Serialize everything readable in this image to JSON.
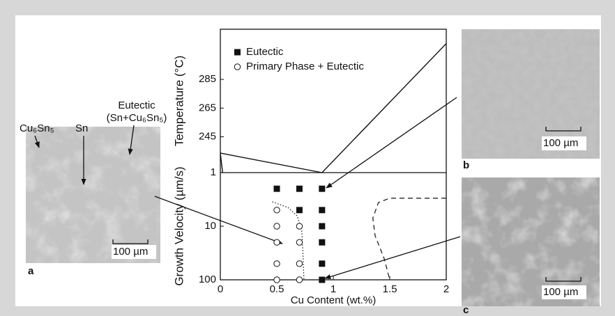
{
  "chart_data": [
    {
      "type": "line",
      "ylabel": "Temperature (°C)",
      "xlim": [
        0,
        2
      ],
      "ylim": [
        220,
        320
      ],
      "yticks": [
        245,
        265,
        285
      ],
      "series": [
        {
          "color": "#111111",
          "x": [
            0,
            0.9,
            2
          ],
          "values": [
            233.6,
            220,
            310
          ]
        },
        {
          "color": "#111111",
          "x": [
            0,
            0.02
          ],
          "values": [
            233.6,
            220
          ]
        }
      ]
    },
    {
      "type": "scatter",
      "xlabel": "Cu Content (wt.%)",
      "ylabel": "Growth Velocity (µm/s)",
      "xlim": [
        0,
        2
      ],
      "xticks": [
        0,
        0.5,
        1,
        1.5,
        2
      ],
      "ylim": [
        1,
        100
      ],
      "yticks": [
        1,
        10,
        100
      ],
      "ylog": true,
      "yinverted": true,
      "series": [
        {
          "name": "Eutectic",
          "marker": "square",
          "color": "#111111",
          "x": [
            0.5,
            0.7,
            0.9,
            0.7,
            0.9,
            0.9,
            0.9,
            0.9,
            0.9
          ],
          "values": [
            2,
            2,
            2,
            5,
            5,
            10,
            20,
            50,
            100
          ]
        },
        {
          "name": "Primary Phase + Eutectic",
          "marker": "circle",
          "color": "#111111",
          "x": [
            0.5,
            0.5,
            0.5,
            0.5,
            0.5,
            0.7,
            0.7,
            0.7,
            0.7
          ],
          "values": [
            5,
            10,
            20,
            50,
            100,
            10,
            20,
            50,
            100
          ]
        }
      ],
      "curves": [
        {
          "style": "dotted",
          "x": [
            0.46,
            0.6,
            0.68,
            0.72,
            0.73,
            0.74
          ],
          "values": [
            3.5,
            4.5,
            6.4,
            11.6,
            28,
            100
          ]
        },
        {
          "style": "dashed",
          "x": [
            2,
            1.5,
            1.4,
            1.35,
            1.37,
            1.45,
            1.5
          ],
          "values": [
            3,
            3,
            3.6,
            7,
            15,
            40,
            100
          ]
        }
      ]
    }
  ],
  "figure": {
    "panels": [
      "a",
      "b",
      "c"
    ],
    "scale_bars": [
      "100 µm",
      "100 µm",
      "100 µm"
    ],
    "phase_labels": [
      "Cu₆Sn₅",
      "Sn",
      "Eutectic",
      "(Sn+Cu₆Sn₅)"
    ]
  }
}
